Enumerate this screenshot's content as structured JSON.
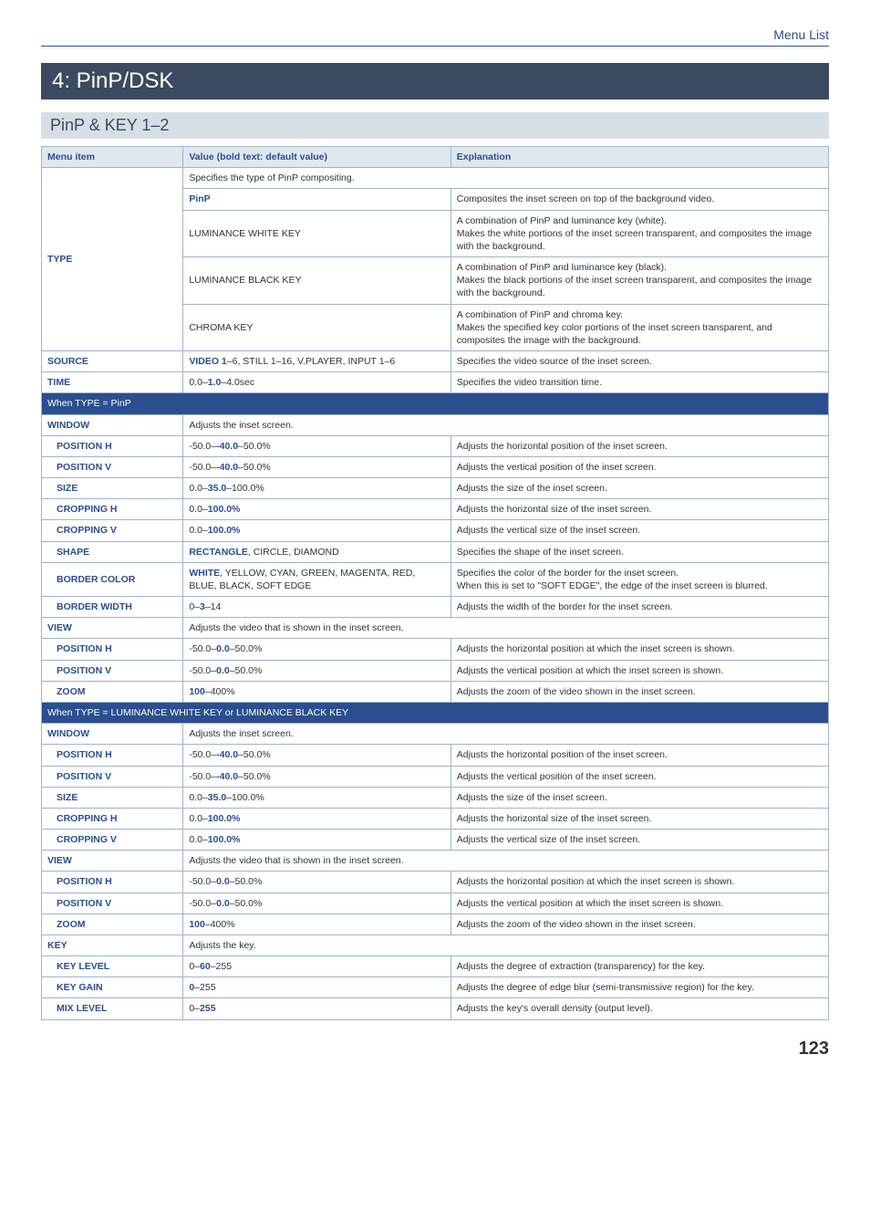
{
  "header": {
    "section_label": "Menu List"
  },
  "chapter": {
    "title": "4: PinP/DSK"
  },
  "section": {
    "title": "PinP & KEY 1–2"
  },
  "table": {
    "headers": {
      "menu": "Menu item",
      "value": "Value (bold text: default value)",
      "expl": "Explanation"
    },
    "type": {
      "label": "TYPE",
      "intro": "Specifies the type of PinP compositing.",
      "rows": [
        {
          "val_bold": "PinP",
          "val_rest": "",
          "expl": "Composites the inset screen on top of the background video."
        },
        {
          "val_bold": "",
          "val_rest": "LUMINANCE WHITE KEY",
          "expl": "A combination of PinP and luminance key (white).\nMakes the white portions of the inset screen transparent, and composites the image with the background."
        },
        {
          "val_bold": "",
          "val_rest": "LUMINANCE BLACK KEY",
          "expl": "A combination of PinP and luminance key (black).\nMakes the black portions of the inset screen transparent, and composites the image with the background."
        },
        {
          "val_bold": "",
          "val_rest": "CHROMA KEY",
          "expl": "A combination of PinP and chroma key.\nMakes the specified key color portions of the inset screen transparent, and composites the image with the background."
        }
      ]
    },
    "source": {
      "label": "SOURCE",
      "val_bold": "VIDEO 1",
      "val_rest": "–6, STILL 1–16, V.PLAYER, INPUT 1–6",
      "expl": "Specifies the video source of the inset screen."
    },
    "time": {
      "label": "TIME",
      "val_pre": "0.0–",
      "val_bold": "1.0",
      "val_post": "–4.0sec",
      "expl": "Specifies the video transition time."
    },
    "group_pinp": {
      "label": "When TYPE = PinP"
    },
    "window1": {
      "label": "WINDOW",
      "intro": "Adjusts the inset screen.",
      "rows": {
        "posh": {
          "label": "POSITION H",
          "val_pre": "-50.0–",
          "val_bold": "-40.0",
          "val_post": "–50.0%",
          "expl": "Adjusts the horizontal position of the inset screen."
        },
        "posv": {
          "label": "POSITION V",
          "val_pre": "-50.0–",
          "val_bold": "-40.0",
          "val_post": "–50.0%",
          "expl": "Adjusts the vertical position of the inset screen."
        },
        "size": {
          "label": "SIZE",
          "val_pre": "0.0–",
          "val_bold": "35.0",
          "val_post": "–100.0%",
          "expl": "Adjusts the size of the inset screen."
        },
        "croph": {
          "label": "CROPPING H",
          "val_pre": "0.0–",
          "val_bold": "100.0%",
          "val_post": "",
          "expl": "Adjusts the horizontal size of the inset screen."
        },
        "cropv": {
          "label": "CROPPING V",
          "val_pre": "0.0–",
          "val_bold": "100.0%",
          "val_post": "",
          "expl": "Adjusts the vertical size of the inset screen."
        },
        "shape": {
          "label": "SHAPE",
          "val_bold": "RECTANGLE",
          "val_rest": ", CIRCLE, DIAMOND",
          "expl": "Specifies the shape of the inset screen."
        },
        "bcolor": {
          "label": "BORDER COLOR",
          "val_bold": "WHITE",
          "val_rest": ", YELLOW, CYAN, GREEN, MAGENTA, RED, BLUE, BLACK, SOFT EDGE",
          "expl": "Specifies the color of the border for the inset screen.\nWhen this is set to \"SOFT EDGE\", the edge of the inset screen is blurred."
        },
        "bwidth": {
          "label": "BORDER WIDTH",
          "val_pre": "0–",
          "val_bold": "3",
          "val_post": "–14",
          "expl": "Adjusts the width of the border for the inset screen."
        }
      }
    },
    "view1": {
      "label": "VIEW",
      "intro": "Adjusts the video that is shown in the inset screen.",
      "rows": {
        "posh": {
          "label": "POSITION H",
          "val_pre": "-50.0–",
          "val_bold": "0.0",
          "val_post": "–50.0%",
          "expl": "Adjusts the horizontal position at which the inset screen is shown."
        },
        "posv": {
          "label": "POSITION V",
          "val_pre": "-50.0–",
          "val_bold": "0.0",
          "val_post": "–50.0%",
          "expl": "Adjusts the vertical position at which the inset screen is shown."
        },
        "zoom": {
          "label": "ZOOM",
          "val_bold": "100",
          "val_post": "–400%",
          "expl": "Adjusts the zoom of the video shown in the inset screen."
        }
      }
    },
    "group_lum": {
      "label": "When TYPE = LUMINANCE WHITE KEY or LUMINANCE BLACK KEY"
    },
    "window2": {
      "label": "WINDOW",
      "intro": "Adjusts the inset screen.",
      "rows": {
        "posh": {
          "label": "POSITION H",
          "val_pre": "-50.0–",
          "val_bold": "-40.0",
          "val_post": "–50.0%",
          "expl": "Adjusts the horizontal position of the inset screen."
        },
        "posv": {
          "label": "POSITION V",
          "val_pre": "-50.0–",
          "val_bold": "-40.0",
          "val_post": "–50.0%",
          "expl": "Adjusts the vertical position of the inset screen."
        },
        "size": {
          "label": "SIZE",
          "val_pre": "0.0–",
          "val_bold": "35.0",
          "val_post": "–100.0%",
          "expl": "Adjusts the size of the inset screen."
        },
        "croph": {
          "label": "CROPPING H",
          "val_pre": "0.0–",
          "val_bold": "100.0%",
          "val_post": "",
          "expl": "Adjusts the horizontal size of the inset screen."
        },
        "cropv": {
          "label": "CROPPING V",
          "val_pre": "0.0–",
          "val_bold": "100.0%",
          "val_post": "",
          "expl": "Adjusts the vertical size of the inset screen."
        }
      }
    },
    "view2": {
      "label": "VIEW",
      "intro": "Adjusts the video that is shown in the inset screen.",
      "rows": {
        "posh": {
          "label": "POSITION H",
          "val_pre": "-50.0–",
          "val_bold": "0.0",
          "val_post": "–50.0%",
          "expl": "Adjusts the horizontal position at which the inset screen is shown."
        },
        "posv": {
          "label": "POSITION V",
          "val_pre": "-50.0–",
          "val_bold": "0.0",
          "val_post": "–50.0%",
          "expl": "Adjusts the vertical position at which the inset screen is shown."
        },
        "zoom": {
          "label": "ZOOM",
          "val_bold": "100",
          "val_post": "–400%",
          "expl": "Adjusts the zoom of the video shown in the inset screen."
        }
      }
    },
    "key": {
      "label": "KEY",
      "intro": "Adjusts the key.",
      "rows": {
        "level": {
          "label": "KEY LEVEL",
          "val_pre": "0–",
          "val_bold": "60",
          "val_post": "–255",
          "expl": "Adjusts the degree of extraction (transparency) for the key."
        },
        "gain": {
          "label": "KEY GAIN",
          "val_bold": "0",
          "val_post": "–255",
          "expl": "Adjusts the degree of edge blur (semi-transmissive region) for the key."
        },
        "mix": {
          "label": "MIX LEVEL",
          "val_pre": "0–",
          "val_bold": "255",
          "val_post": "",
          "expl": "Adjusts the key's overall density (output level)."
        }
      }
    }
  },
  "footer": {
    "page": "123"
  }
}
